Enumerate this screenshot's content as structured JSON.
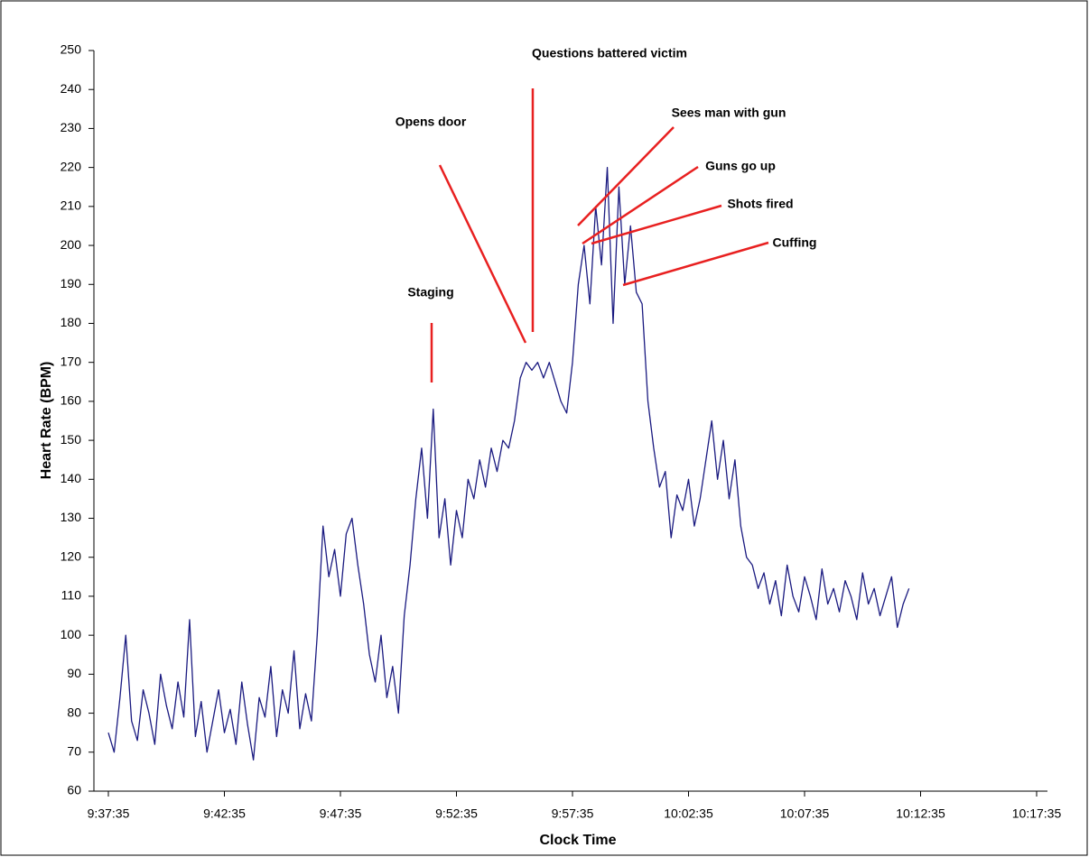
{
  "chart_data": {
    "type": "line",
    "x_label": "Clock Time",
    "y_label": "Heart Rate (BPM)",
    "xlim": [
      0,
      2400
    ],
    "xticks": [
      {
        "value": 0,
        "label": "9:37:35"
      },
      {
        "value": 300,
        "label": "9:42:35"
      },
      {
        "value": 600,
        "label": "9:47:35"
      },
      {
        "value": 900,
        "label": "9:52:35"
      },
      {
        "value": 1200,
        "label": "9:57:35"
      },
      {
        "value": 1500,
        "label": "10:02:35"
      },
      {
        "value": 1800,
        "label": "10:07:35"
      },
      {
        "value": 2100,
        "label": "10:12:35"
      },
      {
        "value": 2400,
        "label": "10:17:35"
      }
    ],
    "ylim": [
      60,
      250
    ],
    "yticks": [
      60,
      70,
      80,
      90,
      100,
      110,
      120,
      130,
      140,
      150,
      160,
      170,
      180,
      190,
      200,
      210,
      220,
      230,
      240,
      250
    ],
    "grid": false,
    "color": "#1a1a80",
    "annotations": [
      "Questions battered victim",
      "Opens door",
      "Staging",
      "Sees man with gun",
      "Guns go up",
      "Shots fired",
      "Cuffing"
    ],
    "annotation_color": "#e82020",
    "x": [
      0,
      15,
      30,
      45,
      60,
      75,
      90,
      105,
      120,
      135,
      150,
      165,
      180,
      195,
      210,
      225,
      240,
      255,
      270,
      285,
      300,
      315,
      330,
      345,
      360,
      375,
      390,
      405,
      420,
      435,
      450,
      465,
      480,
      495,
      510,
      525,
      540,
      555,
      570,
      585,
      600,
      615,
      630,
      645,
      660,
      675,
      690,
      705,
      720,
      735,
      750,
      765,
      780,
      795,
      810,
      825,
      840,
      855,
      870,
      885,
      900,
      915,
      930,
      945,
      960,
      975,
      990,
      1005,
      1020,
      1035,
      1050,
      1065,
      1080,
      1095,
      1110,
      1125,
      1140,
      1155,
      1170,
      1185,
      1200,
      1215,
      1230,
      1245,
      1260,
      1275,
      1290,
      1305,
      1320,
      1335,
      1350,
      1365,
      1380,
      1395,
      1410,
      1425,
      1440,
      1455,
      1470,
      1485,
      1500,
      1515,
      1530,
      1545,
      1560,
      1575,
      1590,
      1605,
      1620,
      1635,
      1650,
      1665,
      1680,
      1695,
      1710,
      1725,
      1740,
      1755,
      1770,
      1785,
      1800,
      1815,
      1830,
      1845,
      1860,
      1875,
      1890,
      1905,
      1920,
      1935,
      1950,
      1965,
      1980,
      1995,
      2010,
      2025,
      2040,
      2055,
      2070
    ],
    "values": [
      75,
      70,
      84,
      100,
      78,
      73,
      86,
      80,
      72,
      90,
      82,
      76,
      88,
      79,
      104,
      74,
      83,
      70,
      78,
      86,
      75,
      81,
      72,
      88,
      77,
      68,
      84,
      79,
      92,
      74,
      86,
      80,
      96,
      76,
      85,
      78,
      100,
      128,
      115,
      122,
      110,
      126,
      130,
      118,
      108,
      95,
      88,
      100,
      84,
      92,
      80,
      105,
      118,
      135,
      148,
      130,
      158,
      125,
      135,
      118,
      132,
      125,
      140,
      135,
      145,
      138,
      148,
      142,
      150,
      148,
      155,
      166,
      170,
      168,
      170,
      166,
      170,
      165,
      160,
      157,
      170,
      190,
      200,
      185,
      210,
      195,
      220,
      180,
      215,
      190,
      205,
      188,
      185,
      160,
      148,
      138,
      142,
      125,
      136,
      132,
      140,
      128,
      135,
      145,
      155,
      140,
      150,
      135,
      145,
      128,
      120,
      118,
      112,
      116,
      108,
      114,
      105,
      118,
      110,
      106,
      115,
      110,
      104,
      117,
      108,
      112,
      106,
      114,
      110,
      104,
      116,
      108,
      112,
      105,
      110,
      115,
      102,
      108,
      112
    ]
  }
}
